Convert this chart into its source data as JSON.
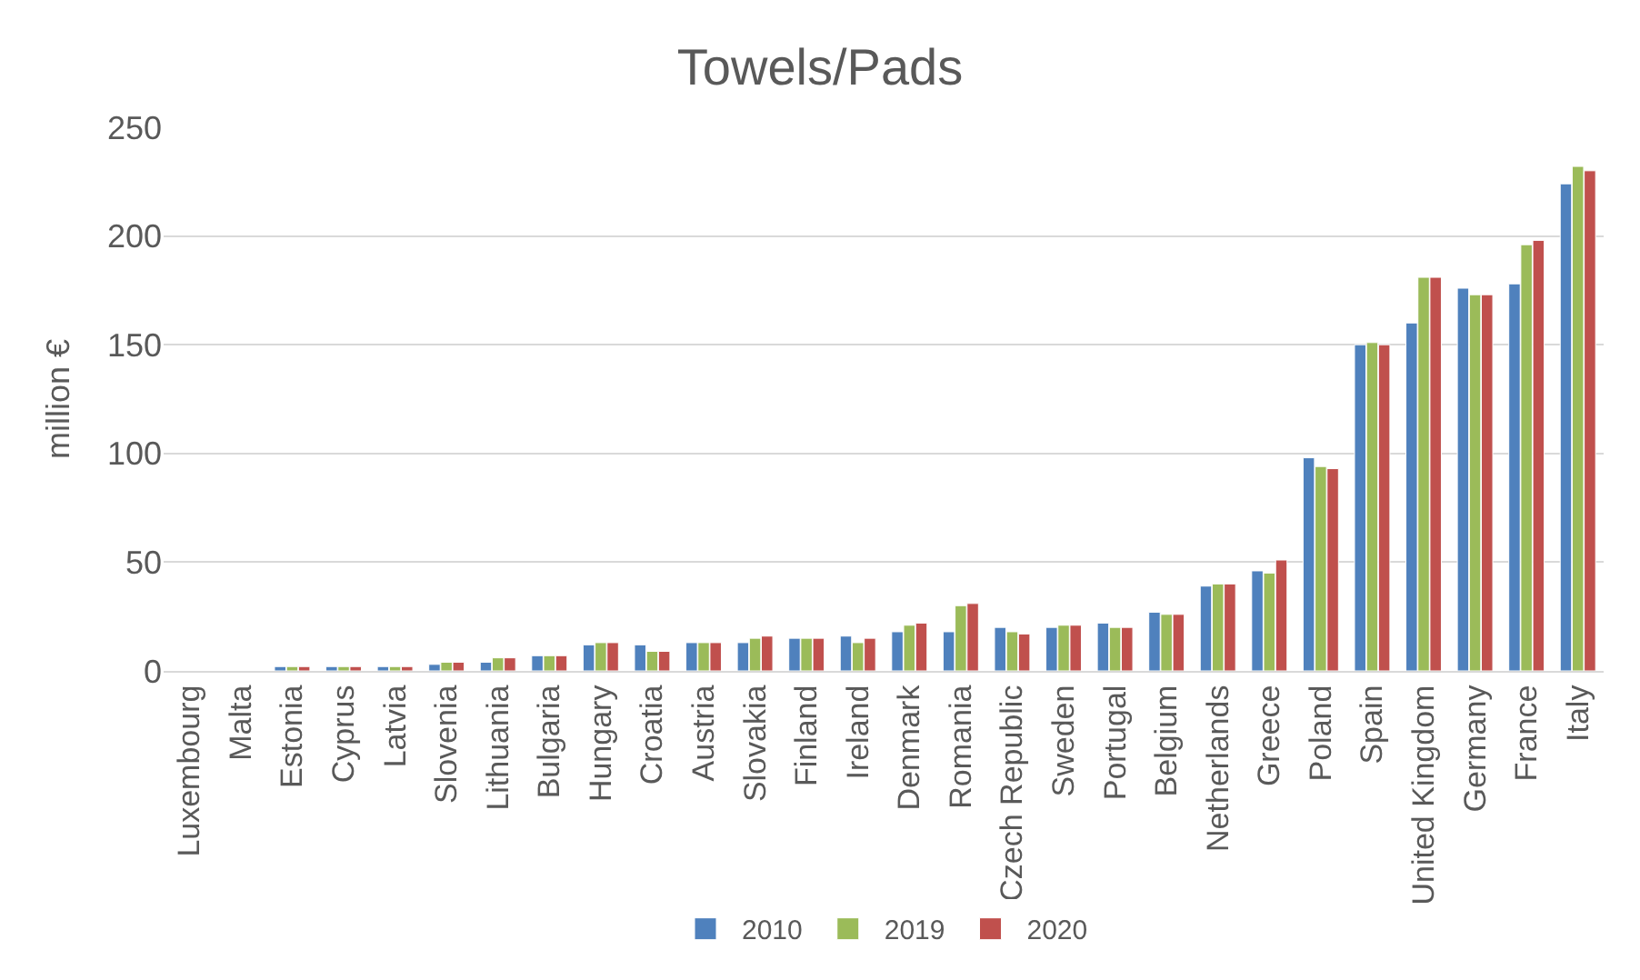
{
  "chart_data": {
    "type": "bar",
    "title": "Towels/Pads",
    "ylabel": "million €",
    "categories": [
      "Luxembourg",
      "Malta",
      "Estonia",
      "Cyprus",
      "Latvia",
      "Slovenia",
      "Lithuania",
      "Bulgaria",
      "Hungary",
      "Croatia",
      "Austria",
      "Slovakia",
      "Finland",
      "Ireland",
      "Denmark",
      "Romania",
      "Czech Republic",
      "Sweden",
      "Portugal",
      "Belgium",
      "Netherlands",
      "Greece",
      "Poland",
      "Spain",
      "United Kingdom",
      "Germany",
      "France",
      "Italy"
    ],
    "series": [
      {
        "name": "2010",
        "color": "#4f81bd",
        "values": [
          null,
          null,
          2,
          2,
          2,
          3,
          4,
          7,
          12,
          12,
          13,
          13,
          15,
          16,
          18,
          18,
          20,
          20,
          22,
          27,
          39,
          46,
          98,
          150,
          160,
          176,
          178,
          224
        ]
      },
      {
        "name": "2019",
        "color": "#9bbb59",
        "values": [
          null,
          null,
          2,
          2,
          2,
          4,
          6,
          7,
          13,
          9,
          13,
          15,
          15,
          13,
          21,
          30,
          18,
          21,
          20,
          26,
          40,
          45,
          94,
          151,
          181,
          173,
          196,
          232
        ]
      },
      {
        "name": "2020",
        "color": "#c0504d",
        "values": [
          null,
          null,
          2,
          2,
          2,
          4,
          6,
          7,
          13,
          9,
          13,
          16,
          15,
          15,
          22,
          31,
          17,
          21,
          20,
          26,
          40,
          51,
          93,
          150,
          181,
          173,
          198,
          230
        ]
      }
    ],
    "ylim": [
      0,
      250
    ],
    "yticks": [
      0,
      50,
      100,
      150,
      200,
      250
    ],
    "grid": "y",
    "legend": "bottom"
  }
}
